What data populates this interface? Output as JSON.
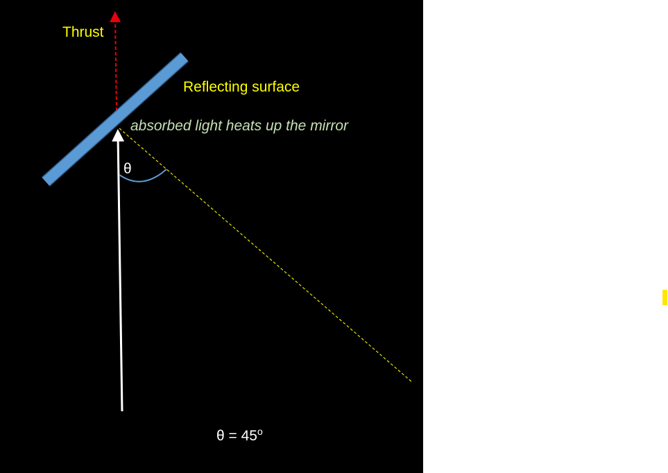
{
  "labels": {
    "thrust": "Thrust",
    "surface": "Reflecting surface",
    "absorbed": "absorbed light heats up the mirror",
    "angle": "θ"
  },
  "equation": {
    "text": "θ = 45",
    "superscript": "o"
  }
}
